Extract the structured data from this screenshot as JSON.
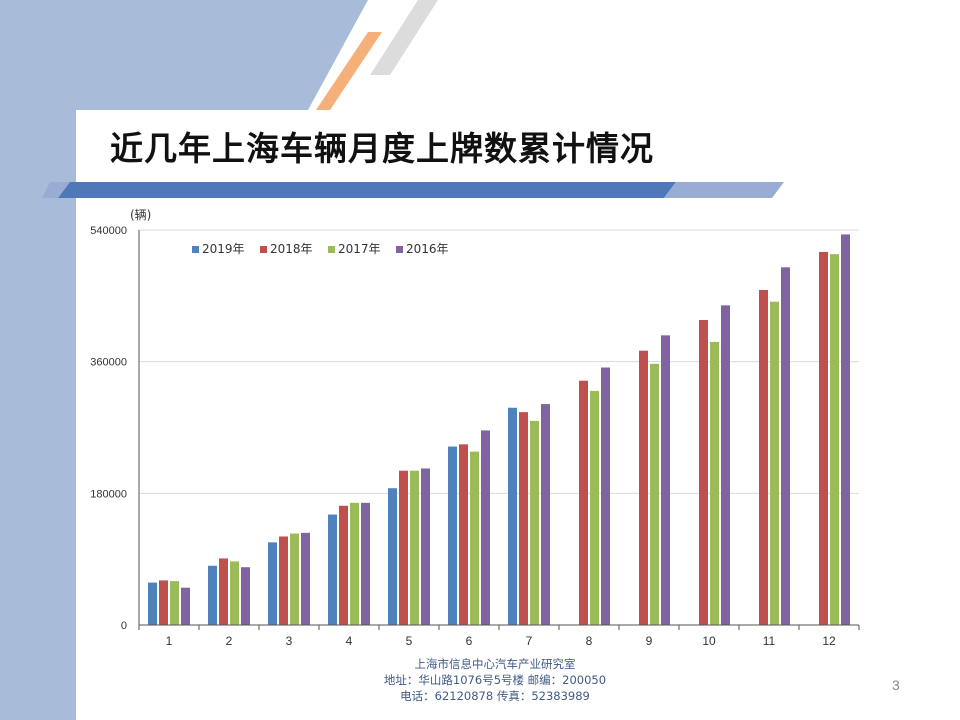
{
  "slide": {
    "title": "近几年上海车辆月度上牌数累计情况",
    "page_number": "3",
    "footer": [
      "上海市信息中心汽车产业研究室",
      "地址：华山路1076号5号楼    邮编：200050",
      "电话：62120878  传真：52383989"
    ]
  },
  "colors": {
    "band": "#a8bbd8",
    "stripe_blue": "#4e78b8",
    "stripe_light": "#97add3",
    "stripe_orange": "#f5b07a",
    "stripe_gray": "#dcdcdc"
  },
  "chart_data": {
    "type": "bar",
    "title": "",
    "xlabel": "",
    "ylabel": "(辆)",
    "ylim": [
      0,
      540000
    ],
    "yticks": [
      "0",
      "180000",
      "360000",
      "540000"
    ],
    "grid": true,
    "legend_position": "top-left",
    "categories": [
      "1",
      "2",
      "3",
      "4",
      "5",
      "6",
      "7",
      "8",
      "9",
      "10",
      "11",
      "12"
    ],
    "series": [
      {
        "name": "2019年",
        "color": "#4f81bd",
        "values": [
          58000,
          81000,
          113000,
          151000,
          187000,
          244000,
          297000,
          null,
          null,
          null,
          null,
          null
        ]
      },
      {
        "name": "2018年",
        "color": "#c0504d",
        "values": [
          61000,
          91000,
          121000,
          163000,
          211000,
          247000,
          291000,
          334000,
          375000,
          417000,
          458000,
          510000
        ]
      },
      {
        "name": "2017年",
        "color": "#9bbb59",
        "values": [
          60000,
          87000,
          125000,
          167000,
          211000,
          237000,
          279000,
          320000,
          357000,
          387000,
          442000,
          507000
        ]
      },
      {
        "name": "2016年",
        "color": "#8064a2",
        "values": [
          51000,
          79000,
          126000,
          167000,
          214000,
          266000,
          302000,
          352000,
          396000,
          437000,
          489000,
          534000
        ]
      }
    ]
  }
}
